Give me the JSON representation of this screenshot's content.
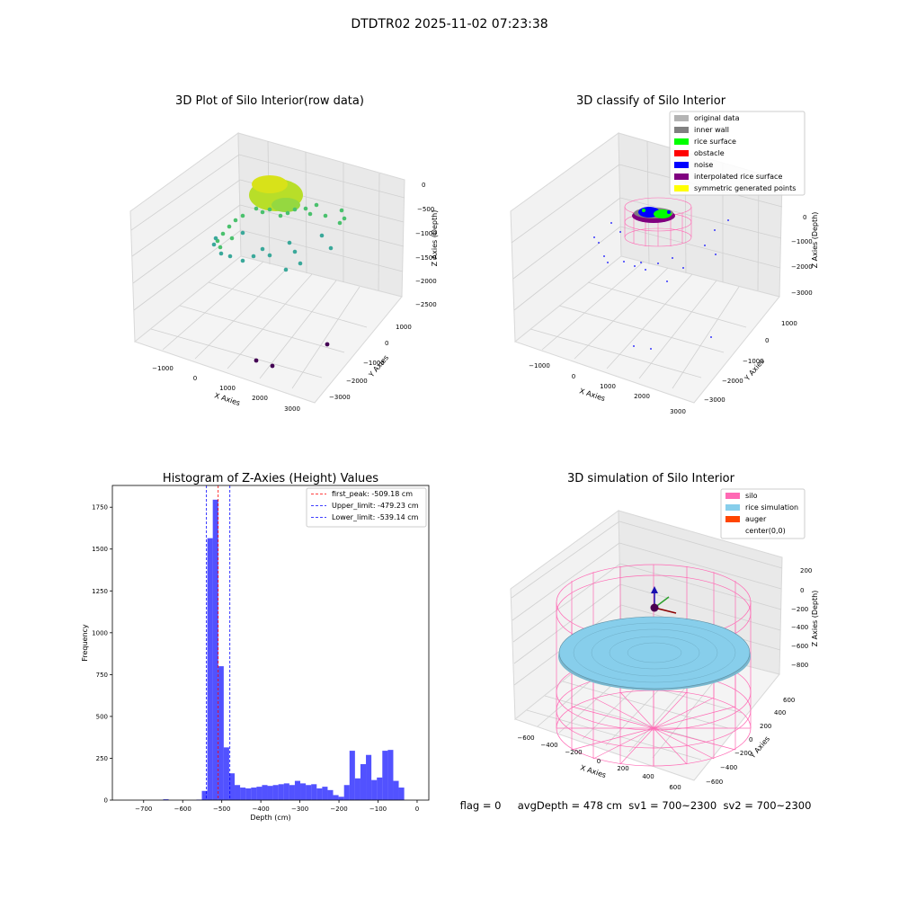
{
  "suptitle": "DTDTR02 2025-11-02 07:23:38",
  "panel1": {
    "title": "3D Plot of Silo Interior(row data)",
    "xlabel": "X Axies",
    "ylabel": "Y Axies",
    "zlabel": "Z Axies (Depth)",
    "xticks": [
      "−1000",
      "0",
      "1000",
      "2000",
      "3000"
    ],
    "yticks": [
      "1000",
      "0",
      "−1000",
      "−2000",
      "−3000"
    ],
    "zticks": [
      "0",
      "−500",
      "−1000",
      "−1500",
      "−2000",
      "−2500"
    ]
  },
  "panel2": {
    "title": "3D classify of Silo Interior",
    "xlabel": "X Axies",
    "ylabel": "Y Axies",
    "zlabel": "Z Axies (Depth)",
    "xticks": [
      "−1000",
      "0",
      "1000",
      "2000",
      "3000"
    ],
    "yticks": [
      "1000",
      "0",
      "−1000",
      "−2000",
      "−3000"
    ],
    "zticks": [
      "0",
      "−1000",
      "−2000",
      "−3000"
    ],
    "legend": [
      {
        "label": "original data",
        "color": "#b3b3b3"
      },
      {
        "label": "inner wall",
        "color": "#808080"
      },
      {
        "label": "rice surface",
        "color": "#00ff00"
      },
      {
        "label": "obstacle",
        "color": "#ff0000"
      },
      {
        "label": "noise",
        "color": "#0000ff"
      },
      {
        "label": "interpolated rice surface",
        "color": "#800080"
      },
      {
        "label": "symmetric generated points",
        "color": "#ffff00"
      }
    ]
  },
  "panel3": {
    "title": "3D simulation of Silo Interior",
    "xlabel": "X Axies",
    "ylabel": "Y Axies",
    "zlabel": "Z Axies (Depth)",
    "xticks": [
      "−600",
      "−400",
      "−200",
      "0",
      "200",
      "400",
      "600"
    ],
    "yticks": [
      "600",
      "400",
      "200",
      "0",
      "−200",
      "−400",
      "−600"
    ],
    "zticks": [
      "200",
      "0",
      "−200",
      "−400",
      "−600",
      "−800"
    ],
    "legend": [
      {
        "label": "silo",
        "color": "#ff69b4"
      },
      {
        "label": "rice simulation",
        "color": "#87ceeb"
      },
      {
        "label": "auger",
        "color": "#ff4500"
      },
      {
        "label": "center(0,0)",
        "color": ""
      }
    ]
  },
  "footer": "flag = 0     avgDepth = 478 cm  sv1 = 700~2300  sv2 = 700~2300",
  "chart_data": [
    {
      "type": "histogram",
      "title": "Histogram of Z-Axies (Height) Values",
      "xlabel": "Depth (cm)",
      "ylabel": "Frequency",
      "xlim": [
        -780,
        30
      ],
      "ylim": [
        0,
        1880
      ],
      "xticks": [
        -700,
        -600,
        -500,
        -400,
        -300,
        -200,
        -100,
        0
      ],
      "yticks": [
        0,
        250,
        500,
        750,
        1000,
        1250,
        1500,
        1750
      ],
      "bar_color": "#0000ff",
      "bins": [
        {
          "x0": -650,
          "x1": -636,
          "count": 5
        },
        {
          "x0": -565,
          "x1": -551,
          "count": 3
        },
        {
          "x0": -551,
          "x1": -537,
          "count": 55
        },
        {
          "x0": -537,
          "x1": -523,
          "count": 1565
        },
        {
          "x0": -523,
          "x1": -509,
          "count": 1795
        },
        {
          "x0": -509,
          "x1": -495,
          "count": 800
        },
        {
          "x0": -495,
          "x1": -481,
          "count": 315
        },
        {
          "x0": -481,
          "x1": -467,
          "count": 160
        },
        {
          "x0": -467,
          "x1": -453,
          "count": 90
        },
        {
          "x0": -453,
          "x1": -439,
          "count": 75
        },
        {
          "x0": -439,
          "x1": -425,
          "count": 70
        },
        {
          "x0": -425,
          "x1": -411,
          "count": 75
        },
        {
          "x0": -411,
          "x1": -397,
          "count": 80
        },
        {
          "x0": -397,
          "x1": -383,
          "count": 90
        },
        {
          "x0": -383,
          "x1": -369,
          "count": 85
        },
        {
          "x0": -369,
          "x1": -355,
          "count": 90
        },
        {
          "x0": -355,
          "x1": -341,
          "count": 95
        },
        {
          "x0": -341,
          "x1": -327,
          "count": 100
        },
        {
          "x0": -327,
          "x1": -313,
          "count": 90
        },
        {
          "x0": -313,
          "x1": -299,
          "count": 115
        },
        {
          "x0": -299,
          "x1": -285,
          "count": 100
        },
        {
          "x0": -285,
          "x1": -271,
          "count": 90
        },
        {
          "x0": -271,
          "x1": -257,
          "count": 95
        },
        {
          "x0": -257,
          "x1": -243,
          "count": 70
        },
        {
          "x0": -243,
          "x1": -229,
          "count": 80
        },
        {
          "x0": -229,
          "x1": -215,
          "count": 60
        },
        {
          "x0": -215,
          "x1": -201,
          "count": 30
        },
        {
          "x0": -201,
          "x1": -187,
          "count": 20
        },
        {
          "x0": -187,
          "x1": -173,
          "count": 90
        },
        {
          "x0": -173,
          "x1": -159,
          "count": 295
        },
        {
          "x0": -159,
          "x1": -145,
          "count": 130
        },
        {
          "x0": -145,
          "x1": -131,
          "count": 215
        },
        {
          "x0": -131,
          "x1": -117,
          "count": 270
        },
        {
          "x0": -117,
          "x1": -103,
          "count": 120
        },
        {
          "x0": -103,
          "x1": -89,
          "count": 135
        },
        {
          "x0": -89,
          "x1": -75,
          "count": 295
        },
        {
          "x0": -75,
          "x1": -61,
          "count": 300
        },
        {
          "x0": -61,
          "x1": -47,
          "count": 115
        },
        {
          "x0": -47,
          "x1": -33,
          "count": 75
        }
      ],
      "vlines": [
        {
          "label": "first_peak: -509.18 cm",
          "x": -509.18,
          "color": "#ff0000"
        },
        {
          "label": "Upper_limit: -479.23 cm",
          "x": -479.23,
          "color": "#0000ff"
        },
        {
          "label": "Lower_limit: -539.14 cm",
          "x": -539.14,
          "color": "#0000ff"
        }
      ],
      "legend_position": "top-right"
    }
  ]
}
